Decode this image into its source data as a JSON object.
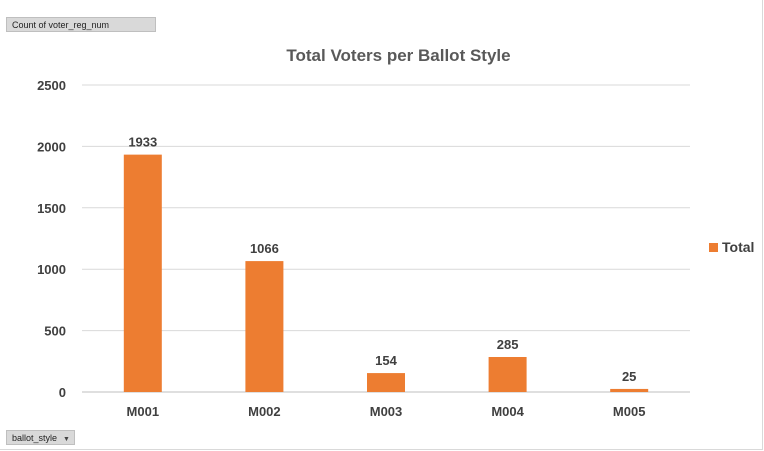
{
  "pivot": {
    "value_field": "Count of voter_reg_num",
    "axis_field": "ballot_style",
    "axis_dropdown": "▼"
  },
  "chart_data": {
    "type": "bar",
    "title": "Total Voters per Ballot Style",
    "xlabel": "",
    "ylabel": "",
    "categories": [
      "M001",
      "M002",
      "M003",
      "M004",
      "M005"
    ],
    "series": [
      {
        "name": "Total",
        "values": [
          1933,
          1066,
          154,
          285,
          25
        ],
        "color": "#ed7d31"
      }
    ],
    "ylim": [
      0,
      2500
    ],
    "yticks": [
      0,
      500,
      1000,
      1500,
      2000,
      2500
    ],
    "grid": true,
    "legend": "right",
    "data_labels": true
  }
}
